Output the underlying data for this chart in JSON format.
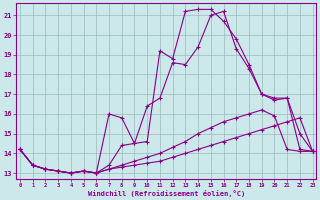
{
  "xlabel": "Windchill (Refroidissement éolien,°C)",
  "bg_color": "#cce8ea",
  "line_color": "#880088",
  "grid_color": "#99bbbb",
  "xlim": [
    -0.3,
    23.3
  ],
  "ylim": [
    12.7,
    21.6
  ],
  "yticks": [
    13,
    14,
    15,
    16,
    17,
    18,
    19,
    20,
    21
  ],
  "xticks": [
    0,
    1,
    2,
    3,
    4,
    5,
    6,
    7,
    8,
    9,
    10,
    11,
    12,
    13,
    14,
    15,
    16,
    17,
    18,
    19,
    20,
    21,
    22,
    23
  ],
  "curve1_x": [
    0,
    1,
    2,
    3,
    4,
    5,
    6,
    7,
    8,
    9,
    10,
    11,
    12,
    13,
    14,
    15,
    16,
    17,
    18,
    19,
    20,
    21,
    22,
    23
  ],
  "curve1_y": [
    14.2,
    13.4,
    13.2,
    13.1,
    13.0,
    13.1,
    13.0,
    13.2,
    13.3,
    13.4,
    13.5,
    13.6,
    13.8,
    14.0,
    14.2,
    14.4,
    14.6,
    14.8,
    15.0,
    15.2,
    15.4,
    15.6,
    15.8,
    14.1
  ],
  "curve2_x": [
    0,
    1,
    2,
    3,
    4,
    5,
    6,
    7,
    8,
    9,
    10,
    11,
    12,
    13,
    14,
    15,
    16,
    17,
    18,
    19,
    20,
    21,
    22,
    23
  ],
  "curve2_y": [
    14.2,
    13.4,
    13.2,
    13.1,
    13.0,
    13.1,
    13.0,
    13.2,
    13.4,
    13.6,
    13.8,
    14.0,
    14.3,
    14.6,
    15.0,
    15.3,
    15.6,
    15.8,
    16.0,
    16.2,
    15.9,
    14.2,
    14.1,
    14.1
  ],
  "curve3_x": [
    0,
    1,
    2,
    3,
    4,
    5,
    6,
    7,
    8,
    9,
    10,
    11,
    12,
    13,
    14,
    15,
    16,
    17,
    18,
    19,
    20,
    21,
    22,
    23
  ],
  "curve3_y": [
    14.2,
    13.4,
    13.2,
    13.1,
    13.0,
    13.1,
    13.0,
    16.0,
    15.8,
    14.5,
    16.4,
    16.8,
    18.6,
    18.5,
    19.4,
    21.0,
    21.2,
    19.3,
    18.3,
    17.0,
    16.7,
    16.8,
    15.0,
    14.1
  ],
  "curve4_x": [
    0,
    1,
    2,
    3,
    4,
    5,
    6,
    7,
    8,
    9,
    10,
    11,
    12,
    13,
    14,
    15,
    16,
    17,
    18,
    19,
    20,
    21,
    22,
    23
  ],
  "curve4_y": [
    14.2,
    13.4,
    13.2,
    13.1,
    13.0,
    13.1,
    13.0,
    13.4,
    14.4,
    14.5,
    14.6,
    19.2,
    18.8,
    21.2,
    21.3,
    21.3,
    20.7,
    19.8,
    18.5,
    17.0,
    16.8,
    16.8,
    14.2,
    14.1
  ]
}
